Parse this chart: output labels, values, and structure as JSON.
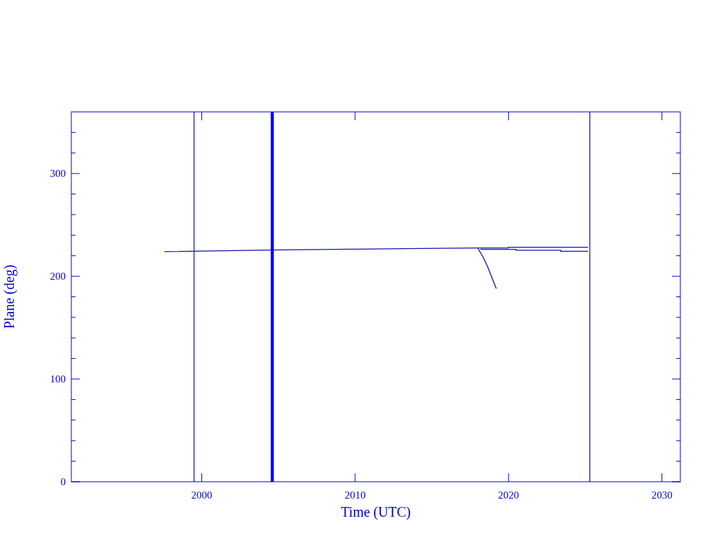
{
  "chart_data": {
    "type": "line",
    "xlabel": "Time (UTC)",
    "ylabel": "Plane (deg)",
    "xlim": [
      1991.5,
      2031.2
    ],
    "xticks": [
      2000,
      2010,
      2020,
      2030
    ],
    "ylim": [
      0,
      360
    ],
    "yticks": [
      0,
      {
        "value": 20,
        "label": null
      },
      {
        "value": 40,
        "label": null
      },
      {
        "value": 60,
        "label": null
      },
      {
        "value": 80,
        "label": null
      },
      100,
      {
        "value": 120,
        "label": null
      },
      {
        "value": 140,
        "label": null
      },
      {
        "value": 160,
        "label": null
      },
      {
        "value": 180,
        "label": null
      },
      200,
      {
        "value": 220,
        "label": null
      },
      {
        "value": 240,
        "label": null
      },
      {
        "value": 260,
        "label": null
      },
      {
        "value": 280,
        "label": null
      },
      300,
      {
        "value": 320,
        "label": null
      },
      {
        "value": 340,
        "label": null
      }
    ],
    "series": [
      {
        "color": "#1010b0",
        "x": [
          1997.57,
          2004.32,
          2009.65,
          2014.2,
          2018.04,
          2019.99,
          2019.99,
          2025.19
        ],
        "values": [
          224,
          225.5,
          226.3,
          227,
          227.5,
          227.5,
          228.2,
          228.2
        ]
      },
      {
        "color": "#1010b0",
        "x": [
          2018.17,
          2020.5,
          2020.5,
          2023.4,
          2023.4,
          2025.19
        ],
        "values": [
          226.2,
          226.2,
          225.4,
          225.4,
          224.3,
          224.3
        ]
      },
      {
        "color": "#1010b0",
        "x": [
          2018.01,
          2018.32,
          2018.62,
          2019.2
        ],
        "values": [
          227,
          219.3,
          210,
          188
        ]
      }
    ],
    "ref_lines": [
      {
        "axis": "x",
        "value": 1999.5,
        "color": "#1010b0"
      },
      {
        "axis": "x",
        "value": 2025.3,
        "color": "#1010b0"
      }
    ],
    "bands": [
      {
        "axis": "x",
        "from": 2004.5,
        "to": 2004.7,
        "color": "#0000ff"
      }
    ],
    "grid": false
  }
}
